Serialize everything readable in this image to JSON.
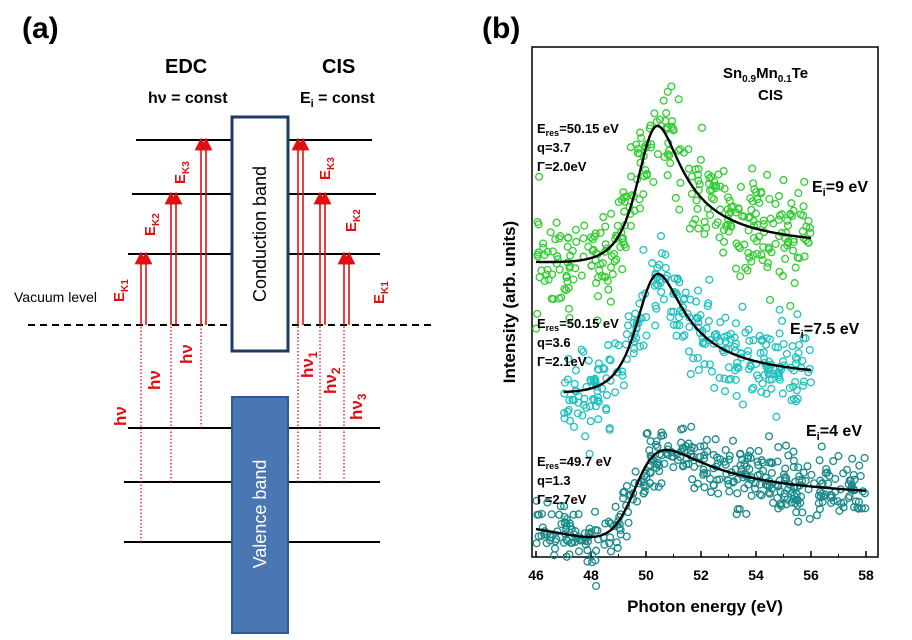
{
  "panel_a": {
    "letter": "(a)",
    "edc_title": "EDC",
    "edc_sub_h": "hν = const",
    "cis_title": "CIS",
    "cis_sub_E": "E",
    "cis_sub_i": "i",
    "cis_sub_rest": " = const",
    "vacuum_level": "Vacuum level",
    "conduction_band": "Conduction band",
    "valence_band": "Valence band",
    "ek_E": "E",
    "ek1_sub": "K1",
    "ek2_sub": "K2",
    "ek3_sub": "K3",
    "hnu": "hν",
    "hnu1_sub": "1",
    "hnu2_sub": "2",
    "hnu3_sub": "3",
    "colors": {
      "arrow": "#e01010",
      "conduction_border": "#1f3b63",
      "valence_fill": "#4a76b4"
    }
  },
  "panel_b": {
    "letter": "(b)",
    "compound_sn": "Sn",
    "compound_sn_sub": "0.9",
    "compound_mn": "Mn",
    "compound_mn_sub": "0.1",
    "compound_te": "Te",
    "compound_cis": "CIS"
  },
  "chart_data": {
    "type": "scatter",
    "title": "",
    "xlabel": "Photon energy (eV)",
    "ylabel": "Intensity (arb. units)",
    "xlim": [
      46,
      58.5
    ],
    "xticks": [
      "46",
      "48",
      "50",
      "52",
      "54",
      "56",
      "58"
    ],
    "series": [
      {
        "name": "Ei=9 eV",
        "label_main": "E",
        "label_sub": "i",
        "label_rest": "=9 eV",
        "color": "#33cc33",
        "x_range": [
          46,
          56
        ],
        "res_E": "E",
        "res_sub": "res",
        "res_value": "=50.15 eV",
        "q_label": "q=3.7",
        "gamma_label": "Γ=2.0eV",
        "E_res": 50.15,
        "q": 3.7,
        "gamma": 2.0
      },
      {
        "name": "Ei=7.5 eV",
        "label_main": "E",
        "label_sub": "i",
        "label_rest": "=7.5 eV",
        "color": "#22c0c0",
        "x_range": [
          47,
          56
        ],
        "res_E": "E",
        "res_sub": "res",
        "res_value": "=50.15 eV",
        "q_label": "q=3.6",
        "gamma_label": "Γ=2.1eV",
        "E_res": 50.15,
        "q": 3.6,
        "gamma": 2.1
      },
      {
        "name": "Ei=4 eV",
        "label_main": "E",
        "label_sub": "i",
        "label_rest": "=4 eV",
        "color": "#1a8a8a",
        "x_range": [
          46,
          58
        ],
        "res_E": "E",
        "res_sub": "res",
        "res_value": "=49.7 eV",
        "q_label": "q=1.3",
        "gamma_label": "Γ=2.7eV",
        "E_res": 49.7,
        "q": 1.3,
        "gamma": 2.7
      }
    ]
  }
}
